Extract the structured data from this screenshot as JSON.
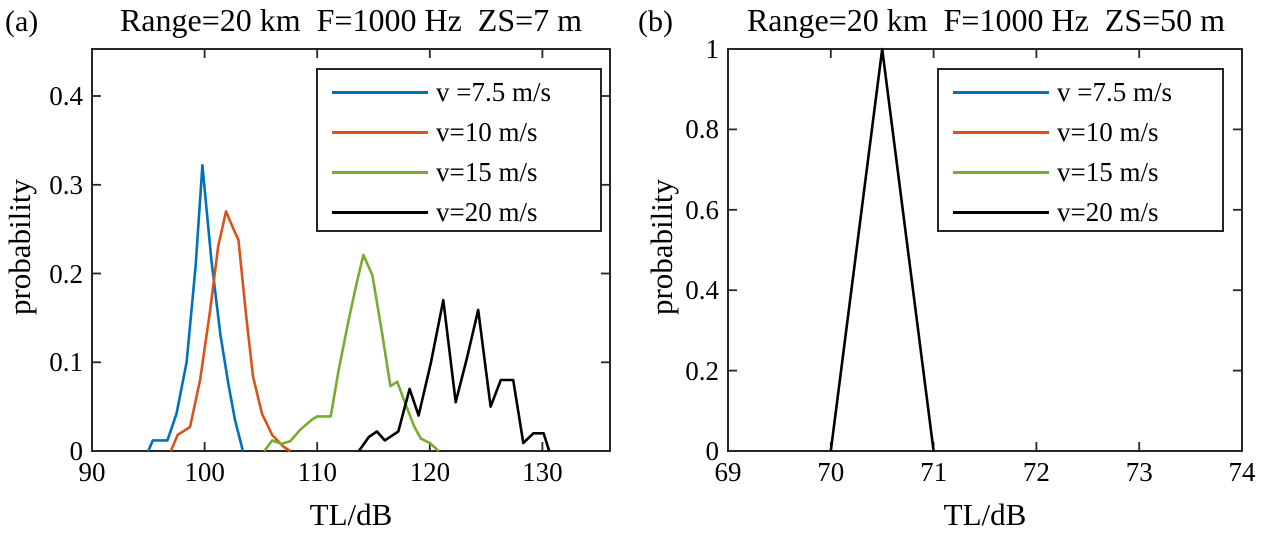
{
  "figure": {
    "background": "#ffffff",
    "axis_color": "#262626",
    "text_color": "#000000"
  },
  "chart_data": [
    {
      "id": "a",
      "type": "line",
      "panel_label": "(a)",
      "title": "Range=20 km  F=1000 Hz  ZS=7 m",
      "xlabel": "TL/dB",
      "ylabel": "probability",
      "xlim": [
        90,
        136
      ],
      "ylim": [
        0,
        0.453
      ],
      "xticks": [
        90,
        100,
        110,
        120,
        130
      ],
      "yticks": [
        0,
        0.1,
        0.2,
        0.3,
        0.4
      ],
      "grid": false,
      "legend_position": "upper right",
      "legend": [
        {
          "label": "v =7.5 m/s",
          "color": "#0072BD"
        },
        {
          "label": "v=10 m/s",
          "color": "#D95319"
        },
        {
          "label": "v=15 m/s",
          "color": "#77AC30"
        },
        {
          "label": "v=20 m/s",
          "color": "#000000"
        }
      ],
      "series": [
        {
          "name": "v =7.5 m/s",
          "color": "#0072BD",
          "points": [
            [
              95.0,
              0
            ],
            [
              95.4,
              0.012
            ],
            [
              96.7,
              0.012
            ],
            [
              97.5,
              0.042
            ],
            [
              98.4,
              0.1
            ],
            [
              99.2,
              0.208
            ],
            [
              99.8,
              0.322
            ],
            [
              100.6,
              0.215
            ],
            [
              101.4,
              0.131
            ],
            [
              102.1,
              0.076
            ],
            [
              102.7,
              0.035
            ],
            [
              103.4,
              0
            ]
          ]
        },
        {
          "name": "v=10 m/s",
          "color": "#D95319",
          "points": [
            [
              97.0,
              0
            ],
            [
              97.6,
              0.018
            ],
            [
              98.7,
              0.027
            ],
            [
              99.6,
              0.08
            ],
            [
              100.5,
              0.159
            ],
            [
              101.2,
              0.23
            ],
            [
              101.9,
              0.27
            ],
            [
              102.6,
              0.249
            ],
            [
              103.0,
              0.238
            ],
            [
              103.7,
              0.151
            ],
            [
              104.3,
              0.084
            ],
            [
              105.1,
              0.042
            ],
            [
              106.0,
              0.018
            ],
            [
              107.0,
              0.005
            ],
            [
              107.6,
              0
            ]
          ]
        },
        {
          "name": "v=15 m/s",
          "color": "#77AC30",
          "points": [
            [
              105.3,
              0
            ],
            [
              106.0,
              0.012
            ],
            [
              106.8,
              0.008
            ],
            [
              107.6,
              0.011
            ],
            [
              108.5,
              0.024
            ],
            [
              109.5,
              0.035
            ],
            [
              110.0,
              0.039
            ],
            [
              111.2,
              0.039
            ],
            [
              111.9,
              0.091
            ],
            [
              112.8,
              0.148
            ],
            [
              113.5,
              0.189
            ],
            [
              114.1,
              0.221
            ],
            [
              114.9,
              0.198
            ],
            [
              115.8,
              0.13
            ],
            [
              116.5,
              0.073
            ],
            [
              117.1,
              0.078
            ],
            [
              117.8,
              0.054
            ],
            [
              118.6,
              0.028
            ],
            [
              119.2,
              0.014
            ],
            [
              120.0,
              0.009
            ],
            [
              120.8,
              0
            ]
          ]
        },
        {
          "name": "v=20 m/s",
          "color": "#000000",
          "points": [
            [
              113.7,
              0
            ],
            [
              114.6,
              0.016
            ],
            [
              115.3,
              0.022
            ],
            [
              116.0,
              0.012
            ],
            [
              117.2,
              0.022
            ],
            [
              118.2,
              0.07
            ],
            [
              119.0,
              0.04
            ],
            [
              120.1,
              0.1
            ],
            [
              121.2,
              0.17
            ],
            [
              122.3,
              0.055
            ],
            [
              123.3,
              0.105
            ],
            [
              124.3,
              0.159
            ],
            [
              125.4,
              0.05
            ],
            [
              126.3,
              0.08
            ],
            [
              127.4,
              0.08
            ],
            [
              128.3,
              0.009
            ],
            [
              129.2,
              0.02
            ],
            [
              130.1,
              0.02
            ],
            [
              130.6,
              0
            ]
          ]
        }
      ]
    },
    {
      "id": "b",
      "type": "line",
      "panel_label": "(b)",
      "title": "Range=20 km  F=1000 Hz  ZS=50 m",
      "xlabel": "TL/dB",
      "ylabel": "probability",
      "xlim": [
        69,
        74
      ],
      "ylim": [
        0,
        1
      ],
      "xticks": [
        69,
        70,
        71,
        72,
        73,
        74
      ],
      "yticks": [
        0,
        0.2,
        0.4,
        0.6,
        0.8,
        1
      ],
      "grid": false,
      "legend_position": "upper right",
      "legend": [
        {
          "label": "v =7.5 m/s",
          "color": "#0072BD"
        },
        {
          "label": "v=10 m/s",
          "color": "#D95319"
        },
        {
          "label": "v=15 m/s",
          "color": "#77AC30"
        },
        {
          "label": "v=20 m/s",
          "color": "#000000"
        }
      ],
      "series": [
        {
          "name": "v=20 m/s",
          "color": "#000000",
          "points": [
            [
              70.0,
              0
            ],
            [
              70.5,
              1
            ],
            [
              71.0,
              0
            ]
          ]
        }
      ]
    }
  ]
}
